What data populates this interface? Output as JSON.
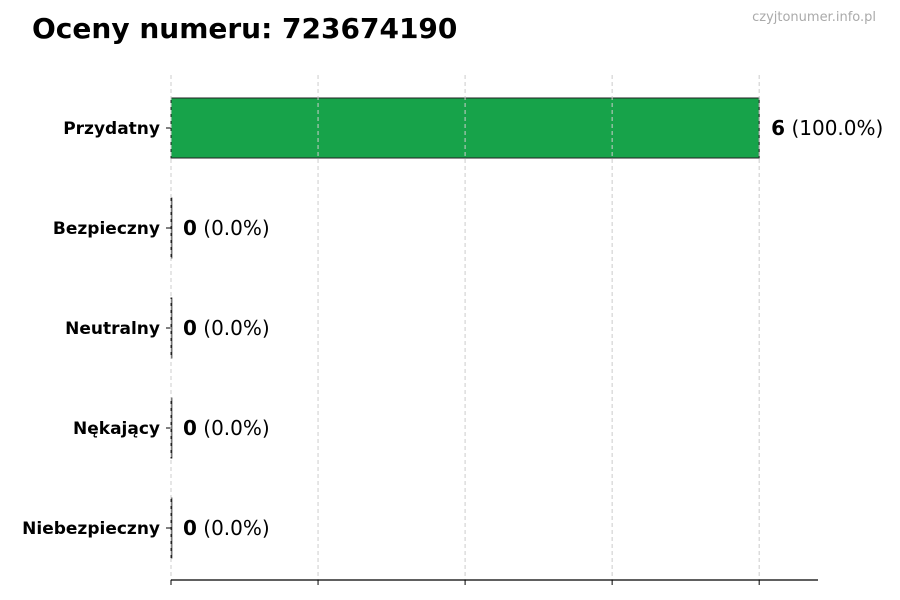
{
  "chart_data": {
    "type": "bar",
    "orientation": "horizontal",
    "title": "Oceny numeru: 723674190",
    "watermark": "czyjtonumer.info.pl",
    "categories": [
      "Przydatny",
      "Bezpieczny",
      "Neutralny",
      "Nękający",
      "Niebezpieczny"
    ],
    "values": [
      6,
      0,
      0,
      0,
      0
    ],
    "value_labels": [
      "6",
      "0",
      "0",
      "0",
      "0"
    ],
    "percent_labels": [
      "(100.0%)",
      "(0.0%)",
      "(0.0%)",
      "(0.0%)",
      "(0.0%)"
    ],
    "colors": [
      "#17a34a",
      "#17a34a",
      "#17a34a",
      "#17a34a",
      "#17a34a"
    ],
    "xlim": [
      0,
      6.6
    ],
    "xticks": [
      0,
      1.5,
      3,
      4.5,
      6
    ],
    "xtick_labels_shown": false,
    "grid": "x-dashed",
    "xlabel": "",
    "ylabel": ""
  }
}
